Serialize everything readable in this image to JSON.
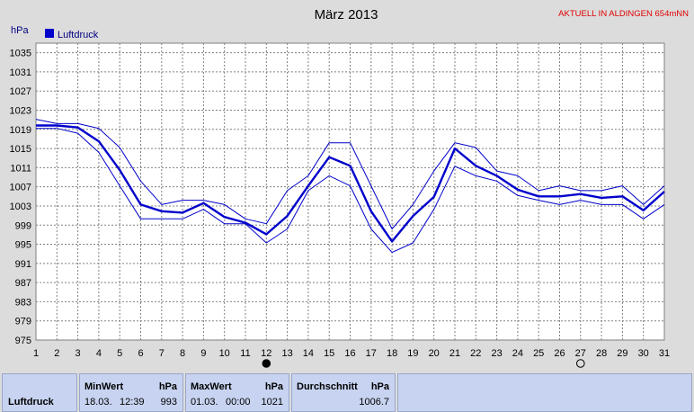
{
  "chart_data": {
    "type": "line",
    "title": "März 2013",
    "station": "AKTUELL IN ALDINGEN 654mNN",
    "ylabel": "hPa",
    "ylim": [
      975,
      1037
    ],
    "yticks": [
      975,
      979,
      983,
      987,
      991,
      995,
      999,
      1003,
      1007,
      1011,
      1015,
      1019,
      1023,
      1027,
      1031,
      1035
    ],
    "x": [
      1,
      2,
      3,
      4,
      5,
      6,
      7,
      8,
      9,
      10,
      11,
      12,
      13,
      14,
      15,
      16,
      17,
      18,
      19,
      20,
      21,
      22,
      23,
      24,
      25,
      26,
      27,
      28,
      29,
      30,
      31
    ],
    "xlim": [
      1,
      31
    ],
    "grid": true,
    "legend": {
      "position": "top-left",
      "entries": [
        "Luftdruck"
      ]
    },
    "series": [
      {
        "name": "Luftdruck",
        "color": "#0000cc",
        "role": "mean",
        "values": [
          1019.8,
          1019.8,
          1019.4,
          1016.5,
          1010.5,
          1003.3,
          1001.9,
          1001.6,
          1003.6,
          1000.7,
          999.5,
          997.1,
          1000.9,
          1007.2,
          1013.2,
          1011.4,
          1001.9,
          995.6,
          1000.9,
          1004.9,
          1015.0,
          1011.4,
          1009.3,
          1006.4,
          1005.0,
          1005.0,
          1005.5,
          1004.7,
          1005.0,
          1002.1,
          1006.0
        ]
      },
      {
        "color": "#0000cc",
        "role": "max",
        "values": [
          1021.1,
          1020.2,
          1020.2,
          1019.2,
          1015.2,
          1008.2,
          1003.3,
          1004.2,
          1004.2,
          1003.3,
          1000.3,
          999.3,
          1006.2,
          1009.3,
          1016.2,
          1016.2,
          1007.2,
          998.2,
          1003.3,
          1010.3,
          1016.2,
          1015.2,
          1010.3,
          1009.3,
          1006.2,
          1007.2,
          1006.2,
          1006.2,
          1007.2,
          1003.3,
          1007.2
        ]
      },
      {
        "color": "#0000cc",
        "role": "min",
        "values": [
          1019.2,
          1019.2,
          1018.2,
          1014.2,
          1007.2,
          1000.3,
          1000.3,
          1000.3,
          1002.3,
          999.3,
          999.3,
          995.3,
          998.2,
          1006.2,
          1009.3,
          1007.2,
          998.2,
          993.3,
          995.3,
          1002.3,
          1011.3,
          1009.3,
          1008.2,
          1005.2,
          1004.2,
          1003.3,
          1004.2,
          1003.3,
          1003.3,
          1000.3,
          1003.3
        ]
      }
    ],
    "markers": [
      {
        "type": "new-moon",
        "day": 12
      },
      {
        "type": "full-moon",
        "day": 27
      }
    ]
  },
  "stats": {
    "row_label": "Luftdruck",
    "min": {
      "header": "MinWert",
      "unit": "hPa",
      "date": "18.03.",
      "time": "12:39",
      "value": "993"
    },
    "max": {
      "header": "MaxWert",
      "unit": "hPa",
      "date": "01.03.",
      "time": "00:00",
      "value": "1021"
    },
    "avg": {
      "header": "Durchschnitt",
      "unit": "hPa",
      "value": "1006.7"
    }
  },
  "colors": {
    "background": "#dcdcdc",
    "plot_background": "#ffffff",
    "series": "#0000cc",
    "grid": "#808080",
    "station_text": "#e00000",
    "stats_panel": "#c7d3f0"
  }
}
